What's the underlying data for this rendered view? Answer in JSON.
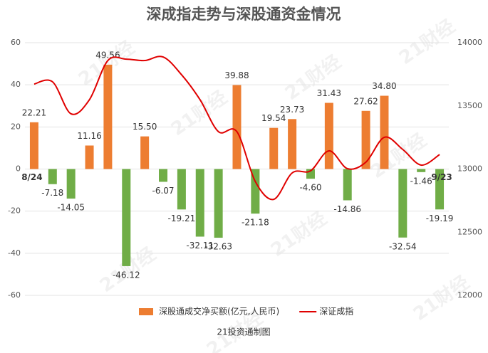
{
  "chart_data": {
    "type": "bar-line",
    "title": "深成指走势与深股通资金情况",
    "footer": "21投资通制图",
    "watermark": "21财经",
    "categories": [
      "8/24",
      null,
      null,
      null,
      null,
      null,
      null,
      null,
      null,
      null,
      null,
      null,
      null,
      null,
      null,
      null,
      null,
      null,
      null,
      null,
      null,
      null,
      "9/23"
    ],
    "series": [
      {
        "name": "深股通成交净买额(亿元,人民币)",
        "type": "bar",
        "color": "#ed7d31",
        "negative_color": "#70ad47",
        "values": [
          22.21,
          -7.18,
          -14.05,
          11.16,
          49.56,
          -46.12,
          15.5,
          -6.07,
          -19.21,
          -32.11,
          -32.63,
          39.88,
          -21.18,
          19.54,
          23.73,
          -4.6,
          31.43,
          -14.86,
          27.62,
          34.8,
          -32.54,
          -1.46,
          -19.19
        ],
        "value_labels": [
          "22.21",
          "-7.18",
          "-14.05",
          "11.16",
          "49.56",
          "-46.12",
          "15.50",
          "-6.07",
          "-19.21",
          "-32.11",
          "-32.63",
          "39.88",
          "-21.18",
          "19.54",
          "23.73",
          "-4.60",
          "31.43",
          "-14.86",
          "27.62",
          "34.80",
          "-32.54",
          "-1.46",
          "-19.19"
        ]
      },
      {
        "name": "深证成指",
        "type": "line",
        "axis": "y2",
        "color": "#e00000",
        "values": [
          13673,
          13690,
          13437,
          13549,
          13859,
          13870,
          13859,
          13887,
          13746,
          13549,
          13296,
          13296,
          12901,
          12760,
          12969,
          12986,
          13144,
          13003,
          13054,
          13251,
          13155,
          13031,
          13115
        ]
      }
    ],
    "ylim": [
      -60,
      60
    ],
    "yticks": [
      -60,
      -40,
      -20,
      0,
      20,
      40,
      60
    ],
    "y2lim": [
      12000,
      14000
    ],
    "y2ticks": [
      12000,
      12500,
      13000,
      13500,
      14000
    ],
    "grid": true
  }
}
